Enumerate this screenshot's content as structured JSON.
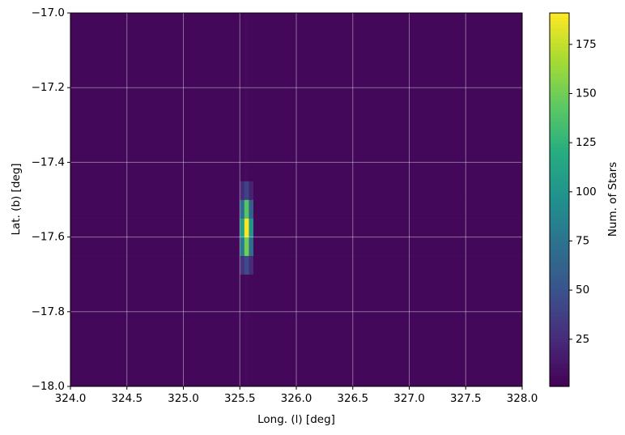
{
  "chart_data": {
    "type": "hist2d",
    "colormap": "viridis",
    "grid": true,
    "xlabel": "Long. (l) [deg]",
    "ylabel": "Lat. (b) [deg]",
    "colorbar_label": "Num. of Stars",
    "x_edges": [
      324,
      325.5,
      325.54,
      325.58,
      325.62,
      328
    ],
    "y_edges": [
      -18,
      -17.7,
      -17.65,
      -17.6,
      -17.55,
      -17.5,
      -17.45,
      -17
    ],
    "values": [
      [
        5,
        5,
        6,
        5,
        5
      ],
      [
        5,
        30,
        45,
        25,
        5
      ],
      [
        5,
        80,
        150,
        70,
        5
      ],
      [
        5,
        110,
        190,
        100,
        5
      ],
      [
        5,
        70,
        140,
        60,
        5
      ],
      [
        5,
        25,
        40,
        20,
        5
      ],
      [
        5,
        5,
        6,
        5,
        5
      ]
    ],
    "xlim": [
      324,
      328
    ],
    "ylim": [
      -18,
      -17
    ],
    "clim": [
      1,
      191
    ],
    "xticks": [
      {
        "value": 324,
        "label": "324.0"
      },
      324.5,
      {
        "value": 325,
        "label": "325.0"
      },
      325.5,
      {
        "value": 326,
        "label": "326.0"
      },
      326.5,
      {
        "value": 327,
        "label": "327.0"
      },
      327.5,
      {
        "value": 328,
        "label": "328.0"
      }
    ],
    "yticks": [
      {
        "value": -18,
        "label": "−18.0"
      },
      {
        "value": -17.8,
        "label": "−17.8"
      },
      {
        "value": -17.6,
        "label": "−17.6"
      },
      {
        "value": -17.4,
        "label": "−17.4"
      },
      {
        "value": -17.2,
        "label": "−17.2"
      },
      {
        "value": -17,
        "label": "−17.0"
      }
    ],
    "cticks": [
      25,
      50,
      75,
      100,
      125,
      150,
      175
    ]
  }
}
